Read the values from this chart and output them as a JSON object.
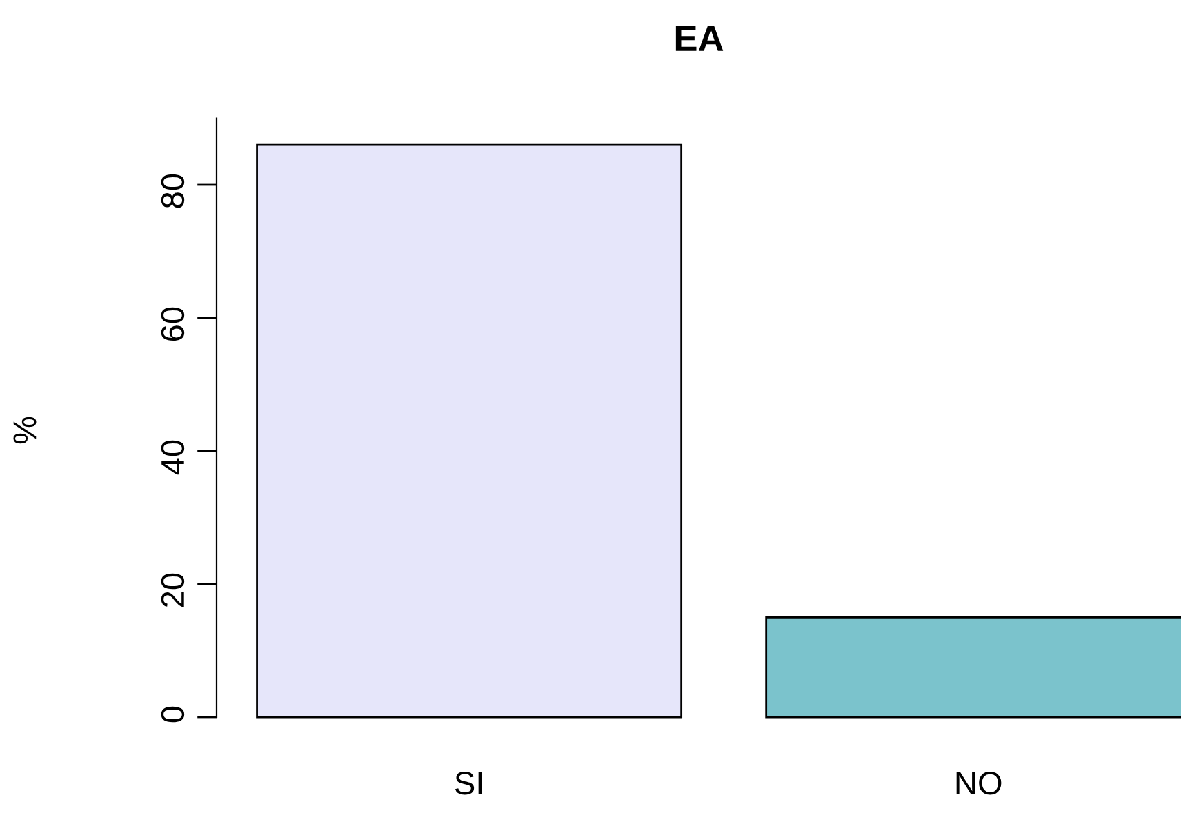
{
  "chart_data": {
    "type": "bar",
    "title": "EA",
    "ylabel": "%",
    "categories": [
      "SI",
      "NO"
    ],
    "values": [
      86,
      15
    ],
    "colors": [
      "#e6e6fa",
      "#7bc3cc"
    ],
    "ylim": [
      0,
      90
    ],
    "yticks": [
      0,
      20,
      40,
      60,
      80
    ],
    "grid": false,
    "legend": false
  }
}
